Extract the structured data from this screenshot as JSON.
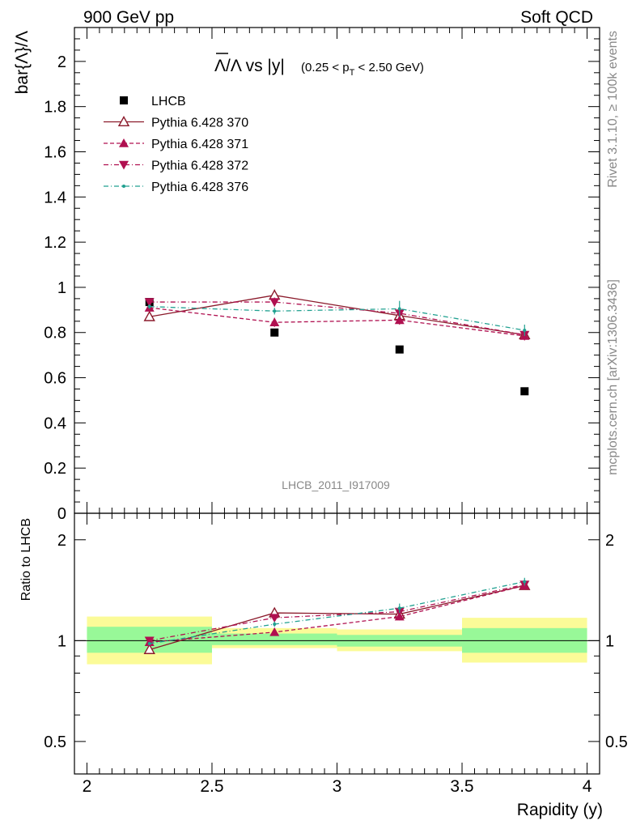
{
  "header": {
    "left": "900 GeV pp",
    "right": "Soft QCD"
  },
  "side_labels": {
    "rivet": "Rivet 3.1.10, ≥ 100k events",
    "mcplots": "mcplots.cern.ch [arXiv:1306.3436]"
  },
  "analysis_id": "LHCB_2011_I917009",
  "chart_data": [
    {
      "type": "scatter",
      "panel": "main",
      "title_main": "Λ/Λ vs |y|",
      "title_cut": "(0.25 < p",
      "title_cut_sub": "T",
      "title_cut_end": " < 2.50 GeV)",
      "ylabel": "bar{Λ}/Λ",
      "ylim": [
        0,
        2.15
      ],
      "yticks": [
        0,
        0.2,
        0.4,
        0.6,
        0.8,
        1,
        1.2,
        1.4,
        1.6,
        1.8,
        2
      ],
      "ytick_labels": [
        "0",
        "0.2",
        "0.4",
        "0.6",
        "0.8",
        "1",
        "1.2",
        "1.4",
        "1.6",
        "1.8",
        "2"
      ],
      "x": [
        2.25,
        2.75,
        3.25,
        3.75
      ],
      "legend_position": "top-left",
      "series": [
        {
          "name": "LHCB",
          "color": "#000000",
          "marker": "square",
          "line": "none",
          "values": [
            0.935,
            0.8,
            0.725,
            0.54
          ]
        },
        {
          "name": "Pythia 6.428 370",
          "color": "#8b1a2b",
          "marker": "open-triangle-up",
          "line": "solid",
          "values": [
            0.87,
            0.965,
            0.875,
            0.79
          ],
          "errors": [
            0.01,
            0.025,
            0.02,
            0.02
          ]
        },
        {
          "name": "Pythia 6.428 371",
          "color": "#b01050",
          "marker": "triangle-up",
          "line": "dashed",
          "values": [
            0.91,
            0.845,
            0.855,
            0.785
          ],
          "errors": [
            0.01,
            0.02,
            0.02,
            0.02
          ]
        },
        {
          "name": "Pythia 6.428 372",
          "color": "#b01050",
          "marker": "triangle-down",
          "line": "dashdot",
          "values": [
            0.935,
            0.935,
            0.885,
            0.79
          ],
          "errors": [
            0.01,
            0.02,
            0.02,
            0.02
          ]
        },
        {
          "name": "Pythia 6.428 376",
          "color": "#20a090",
          "marker": "dot",
          "line": "dashdot",
          "values": [
            0.915,
            0.895,
            0.905,
            0.81
          ],
          "errors": [
            0.01,
            0.015,
            0.035,
            0.025
          ]
        }
      ]
    },
    {
      "type": "scatter",
      "panel": "ratio",
      "ylabel": "Ratio to LHCB",
      "xlabel": "Rapidity (y)",
      "xlim": [
        1.95,
        4.05
      ],
      "ylim": [
        0.4,
        2.4
      ],
      "log_y": true,
      "yticks": [
        0.5,
        1,
        2
      ],
      "ytick_labels": [
        "0.5",
        "1",
        "2"
      ],
      "xticks": [
        2,
        2.5,
        3,
        3.5,
        4
      ],
      "xtick_labels": [
        "2",
        "2.5",
        "3",
        "3.5",
        "4"
      ],
      "x": [
        2.25,
        2.75,
        3.25,
        3.75
      ],
      "bands": [
        {
          "xmin": 2.0,
          "xmax": 2.5,
          "inner": [
            0.92,
            1.1
          ],
          "outer": [
            0.85,
            1.18
          ]
        },
        {
          "xmin": 2.5,
          "xmax": 3.0,
          "inner": [
            0.97,
            1.05
          ],
          "outer": [
            0.95,
            1.09
          ]
        },
        {
          "xmin": 3.0,
          "xmax": 3.5,
          "inner": [
            0.96,
            1.04
          ],
          "outer": [
            0.93,
            1.08
          ]
        },
        {
          "xmin": 3.5,
          "xmax": 4.0,
          "inner": [
            0.92,
            1.09
          ],
          "outer": [
            0.86,
            1.17
          ]
        }
      ],
      "band_colors": {
        "inner": "#98f898",
        "outer": "#fbfb98"
      },
      "series": [
        {
          "name": "Pythia 6.428 370",
          "values": [
            0.94,
            1.21,
            1.2,
            1.46
          ],
          "errors": [
            0.01,
            0.03,
            0.03,
            0.04
          ]
        },
        {
          "name": "Pythia 6.428 371",
          "values": [
            0.99,
            1.06,
            1.18,
            1.46
          ],
          "errors": [
            0.01,
            0.02,
            0.03,
            0.04
          ]
        },
        {
          "name": "Pythia 6.428 372",
          "values": [
            1.0,
            1.17,
            1.22,
            1.47
          ],
          "errors": [
            0.01,
            0.02,
            0.03,
            0.04
          ]
        },
        {
          "name": "Pythia 6.428 376",
          "values": [
            0.98,
            1.12,
            1.25,
            1.5
          ],
          "errors": [
            0.01,
            0.02,
            0.04,
            0.04
          ]
        }
      ]
    }
  ]
}
